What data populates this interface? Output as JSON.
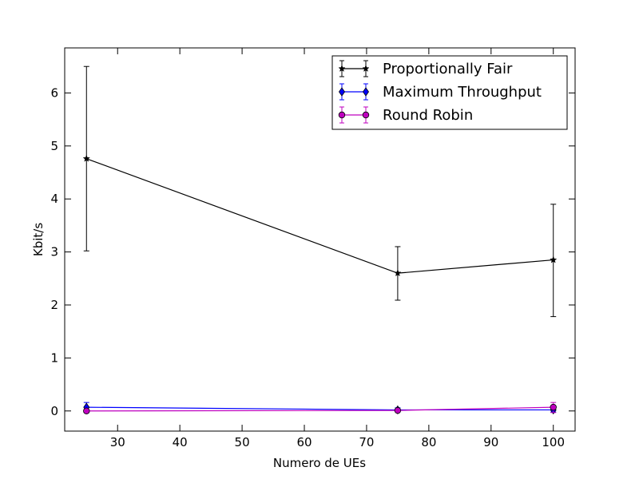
{
  "chart_data": {
    "type": "line",
    "title": "",
    "xlabel": "Numero de UEs",
    "ylabel": "Kbit/s",
    "xlim": [
      21.5,
      103.5
    ],
    "ylim": [
      -0.38,
      6.85
    ],
    "xticks": [
      30,
      40,
      50,
      60,
      70,
      80,
      90,
      100
    ],
    "yticks": [
      0,
      1,
      2,
      3,
      4,
      5,
      6
    ],
    "x": [
      25,
      75,
      100
    ],
    "grid": false,
    "legend_position": "top-right",
    "series": [
      {
        "name": "Proportionally Fair",
        "color": "#000000",
        "marker": "star",
        "values": [
          4.76,
          2.6,
          2.85
        ],
        "err_low": [
          3.02,
          2.09,
          1.78
        ],
        "err_high": [
          6.5,
          3.1,
          3.9
        ]
      },
      {
        "name": "Maximum Throughput",
        "color": "#0000ff",
        "marker": "diamond",
        "values": [
          0.07,
          0.02,
          0.02
        ],
        "err_low": [
          -0.03,
          -0.02,
          -0.02
        ],
        "err_high": [
          0.16,
          0.06,
          0.07
        ]
      },
      {
        "name": "Round Robin",
        "color": "#bf00bf",
        "marker": "circle",
        "values": [
          0.0,
          0.01,
          0.07
        ],
        "err_low": [
          -0.02,
          -0.01,
          -0.03
        ],
        "err_high": [
          0.02,
          0.03,
          0.16
        ]
      }
    ]
  }
}
